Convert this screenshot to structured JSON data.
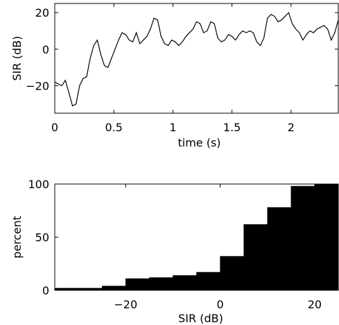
{
  "chart_data": [
    {
      "type": "line",
      "xlabel": "time (s)",
      "ylabel": "SIR (dB)",
      "xlim": [
        0,
        2.4
      ],
      "ylim": [
        -35,
        25
      ],
      "xticks": [
        0,
        0.5,
        1,
        1.5,
        2
      ],
      "xtick_labels": [
        "0",
        "0.5",
        "1",
        "1.5",
        "2"
      ],
      "yticks": [
        -20,
        0,
        20
      ],
      "ytick_labels": [
        "−20",
        "0",
        "20"
      ],
      "grid": false,
      "series": [
        {
          "x": [
            0,
            0.03,
            0.06,
            0.09,
            0.12,
            0.15,
            0.18,
            0.21,
            0.24,
            0.27,
            0.3,
            0.33,
            0.36,
            0.39,
            0.42,
            0.45,
            0.48,
            0.51,
            0.54,
            0.57,
            0.6,
            0.63,
            0.66,
            0.69,
            0.72,
            0.75,
            0.78,
            0.81,
            0.84,
            0.87,
            0.9,
            0.93,
            0.96,
            0.99,
            1.02,
            1.05,
            1.08,
            1.11,
            1.14,
            1.17,
            1.2,
            1.23,
            1.26,
            1.29,
            1.32,
            1.35,
            1.38,
            1.41,
            1.44,
            1.47,
            1.5,
            1.53,
            1.56,
            1.59,
            1.62,
            1.65,
            1.68,
            1.71,
            1.74,
            1.77,
            1.8,
            1.83,
            1.86,
            1.89,
            1.92,
            1.95,
            1.98,
            2.01,
            2.04,
            2.07,
            2.1,
            2.13,
            2.16,
            2.19,
            2.22,
            2.25,
            2.28,
            2.31,
            2.34,
            2.37,
            2.4
          ],
          "y": [
            -18,
            -19,
            -20,
            -17,
            -24,
            -31,
            -30,
            -20,
            -16,
            -15,
            -5,
            2,
            5,
            -3,
            -9,
            -10,
            -5,
            0,
            5,
            9,
            8,
            5,
            4,
            9,
            3,
            5,
            7,
            11,
            17,
            16,
            7,
            3,
            2,
            5,
            4,
            2,
            4,
            7,
            9,
            11,
            15,
            14,
            9,
            10,
            15,
            14,
            6,
            4,
            5,
            8,
            7,
            5,
            8,
            10,
            9,
            10,
            9,
            4,
            2,
            6,
            17,
            19,
            18,
            15,
            16,
            18,
            20,
            14,
            11,
            9,
            5,
            8,
            10,
            9,
            11,
            12,
            13,
            11,
            5,
            9,
            16
          ]
        }
      ]
    },
    {
      "type": "bar",
      "xlabel": "SIR (dB)",
      "ylabel": "percent",
      "xlim": [
        -35,
        25
      ],
      "ylim": [
        0,
        100
      ],
      "xticks": [
        -20,
        0,
        20
      ],
      "xtick_labels": [
        "−20",
        "0",
        "20"
      ],
      "yticks": [
        0,
        50,
        100
      ],
      "ytick_labels": [
        "0",
        "50",
        "100"
      ],
      "grid": false,
      "bin_edges": [
        -35,
        -30,
        -25,
        -20,
        -15,
        -10,
        -5,
        0,
        5,
        10,
        15,
        20,
        25
      ],
      "values": [
        2,
        2,
        4,
        11,
        12,
        14,
        17,
        32,
        62,
        78,
        98,
        100
      ]
    }
  ]
}
